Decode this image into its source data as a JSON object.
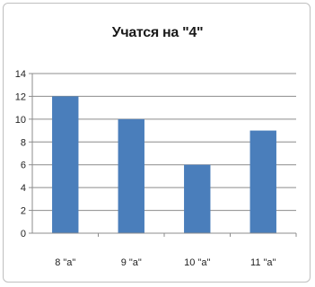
{
  "chart_data": {
    "type": "bar",
    "title": "Учатся на \"4\"",
    "categories": [
      "8 \"a\"",
      "9 \"a\"",
      "10 \"a\"",
      "11 \"a\""
    ],
    "values": [
      12,
      10,
      6,
      9
    ],
    "ylim": [
      0,
      14
    ],
    "yticks": [
      0,
      2,
      4,
      6,
      8,
      10,
      12,
      14
    ],
    "grid": true,
    "bar_color": "#4a7ebb",
    "grid_color": "#8c8c8c"
  }
}
